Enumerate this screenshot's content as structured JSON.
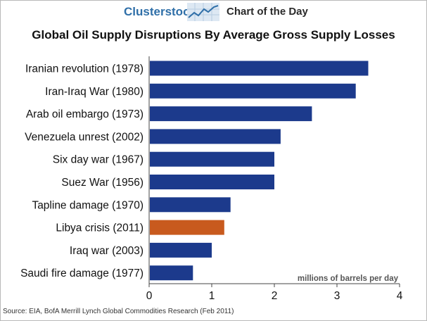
{
  "header": {
    "brand": "Clusterstock",
    "label": "Chart of the Day"
  },
  "source": "Source: EIA, BofA Merrill Lynch Global Commodities Research (Feb 2011)",
  "colors": {
    "bar": "#1c3a8c",
    "highlight": "#c85a1e",
    "brand": "#2f6fa8"
  },
  "chart_data": {
    "type": "bar",
    "orientation": "horizontal",
    "title": "Global Oil Supply Disruptions By Average Gross Supply Losses",
    "xlabel": "millions of barrels per day",
    "ylabel": "",
    "xlim": [
      0,
      4
    ],
    "xticks": [
      0,
      1,
      2,
      3,
      4
    ],
    "grid": false,
    "categories": [
      "Iranian revolution (1978)",
      "Iran-Iraq War (1980)",
      "Arab oil embargo (1973)",
      "Venezuela unrest (2002)",
      "Six day war (1967)",
      "Suez War (1956)",
      "Tapline damage (1970)",
      "Libya crisis (2011)",
      "Iraq war (2003)",
      "Saudi fire damage (1977)"
    ],
    "values": [
      3.5,
      3.3,
      2.6,
      2.1,
      2.0,
      2.0,
      1.3,
      1.2,
      1.0,
      0.7
    ],
    "highlighted": [
      "Libya crisis (2011)"
    ]
  }
}
